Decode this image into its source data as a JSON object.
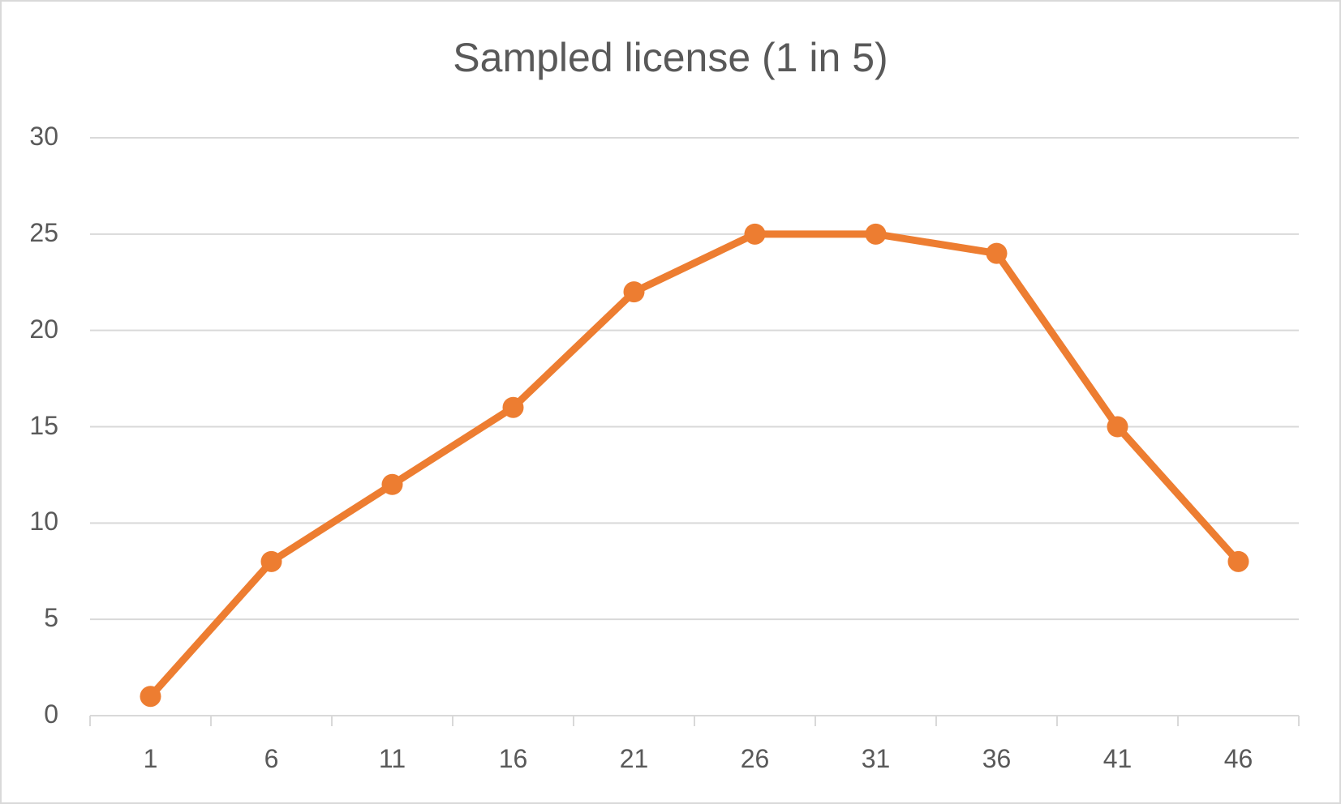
{
  "chart_data": {
    "type": "line",
    "title": "Sampled license (1 in 5)",
    "xlabel": "",
    "ylabel": "",
    "categories": [
      "1",
      "6",
      "11",
      "16",
      "21",
      "26",
      "31",
      "36",
      "41",
      "46"
    ],
    "series": [
      {
        "name": "Sampled license",
        "color": "#ED7D31",
        "values": [
          1,
          8,
          12,
          16,
          22,
          25,
          25,
          24,
          15,
          8
        ]
      }
    ],
    "ylim": [
      0,
      30
    ],
    "yticks": [
      "0",
      "5",
      "10",
      "15",
      "20",
      "25",
      "30"
    ],
    "grid": true,
    "legend": "none",
    "markers": true
  },
  "colors": {
    "line": "#ED7D31",
    "grid": "#D9D9D9",
    "text": "#595959"
  }
}
